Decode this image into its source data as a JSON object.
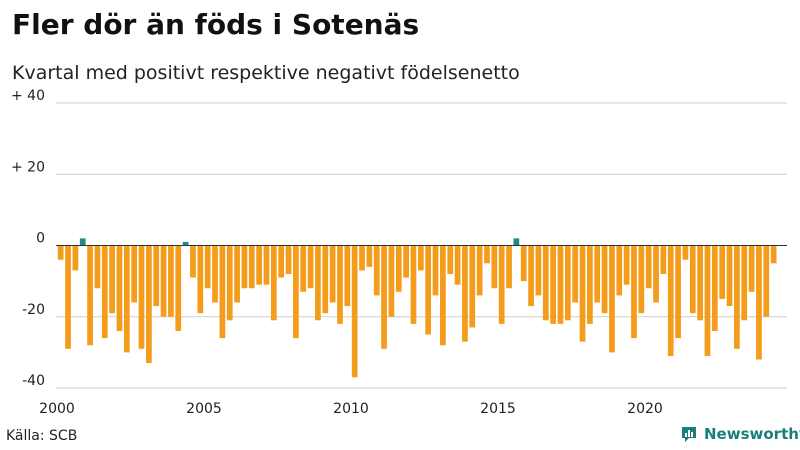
{
  "header": {
    "title": "Fler dör än föds i Sotenäs",
    "subtitle": "Kvartal med positivt respektive negativt födelsenetto"
  },
  "footer": {
    "source": "Källa: SCB",
    "brand": "Newsworthy",
    "brand_icon": "newsworthy-logo-icon"
  },
  "colors": {
    "positive": "#1e8c84",
    "negative": "#f49c1c",
    "grid": "#cfcfcf",
    "zero_line": "#333333",
    "brand": "#1a7f78"
  },
  "chart_data": {
    "type": "bar",
    "title": "Fler dör än föds i Sotenäs",
    "subtitle": "Kvartal med positivt respektive negativt födelsenetto",
    "xlabel": "",
    "ylabel": "",
    "ylim": [
      -40,
      40
    ],
    "yticks": [
      {
        "value": 40,
        "label": "+ 40"
      },
      {
        "value": 20,
        "label": "+ 20"
      },
      {
        "value": 0,
        "label": "0"
      },
      {
        "value": -20,
        "label": "-20"
      },
      {
        "value": -40,
        "label": "-40"
      }
    ],
    "xticks": [
      {
        "value": 2000,
        "label": "2000"
      },
      {
        "value": 2005,
        "label": "2005"
      },
      {
        "value": 2010,
        "label": "2010"
      },
      {
        "value": 2015,
        "label": "2015"
      },
      {
        "value": 2020,
        "label": "2020"
      }
    ],
    "start_year": 2000,
    "periods_per_year": 4,
    "grid": true,
    "values": [
      -4,
      -29,
      -7,
      2,
      -28,
      -12,
      -26,
      -19,
      -24,
      -30,
      -16,
      -29,
      -33,
      -17,
      -20,
      -20,
      -24,
      1,
      -9,
      -19,
      -12,
      -16,
      -26,
      -21,
      -16,
      -12,
      -12,
      -11,
      -11,
      -21,
      -9,
      -8,
      -26,
      -13,
      -12,
      -21,
      -19,
      -16,
      -22,
      -17,
      -37,
      -7,
      -6,
      -14,
      -29,
      -20,
      -13,
      -9,
      -22,
      -7,
      -25,
      -14,
      -28,
      -8,
      -11,
      -27,
      -23,
      -14,
      -5,
      -12,
      -22,
      -12,
      2,
      -10,
      -17,
      -14,
      -21,
      -22,
      -22,
      -21,
      -16,
      -27,
      -22,
      -16,
      -19,
      -30,
      -14,
      -11,
      -26,
      -19,
      -12,
      -16,
      -8,
      -31,
      -26,
      -4,
      -19,
      -21,
      -31,
      -24,
      -15,
      -17,
      -29,
      -21,
      -13,
      -32,
      -20,
      -5
    ]
  }
}
